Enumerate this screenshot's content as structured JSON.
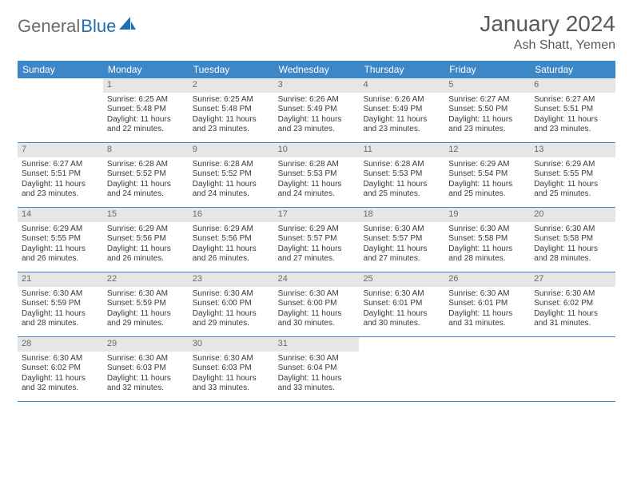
{
  "brand": {
    "part1": "General",
    "part2": "Blue"
  },
  "title": "January 2024",
  "location": "Ash Shatt, Yemen",
  "colors": {
    "header_bg": "#3d87c7",
    "header_text": "#ffffff",
    "daynum_bg": "#e6e6e6",
    "daynum_text": "#6a6a6a",
    "body_text": "#3a3a3a",
    "rule": "#3d87c7",
    "brand_gray": "#6b6b6b",
    "brand_blue": "#1f6fb2"
  },
  "day_names": [
    "Sunday",
    "Monday",
    "Tuesday",
    "Wednesday",
    "Thursday",
    "Friday",
    "Saturday"
  ],
  "weeks": [
    [
      {
        "blank": true
      },
      {
        "num": "1",
        "sunrise": "Sunrise: 6:25 AM",
        "sunset": "Sunset: 5:48 PM",
        "daylight": "Daylight: 11 hours and 22 minutes."
      },
      {
        "num": "2",
        "sunrise": "Sunrise: 6:25 AM",
        "sunset": "Sunset: 5:48 PM",
        "daylight": "Daylight: 11 hours and 23 minutes."
      },
      {
        "num": "3",
        "sunrise": "Sunrise: 6:26 AM",
        "sunset": "Sunset: 5:49 PM",
        "daylight": "Daylight: 11 hours and 23 minutes."
      },
      {
        "num": "4",
        "sunrise": "Sunrise: 6:26 AM",
        "sunset": "Sunset: 5:49 PM",
        "daylight": "Daylight: 11 hours and 23 minutes."
      },
      {
        "num": "5",
        "sunrise": "Sunrise: 6:27 AM",
        "sunset": "Sunset: 5:50 PM",
        "daylight": "Daylight: 11 hours and 23 minutes."
      },
      {
        "num": "6",
        "sunrise": "Sunrise: 6:27 AM",
        "sunset": "Sunset: 5:51 PM",
        "daylight": "Daylight: 11 hours and 23 minutes."
      }
    ],
    [
      {
        "num": "7",
        "sunrise": "Sunrise: 6:27 AM",
        "sunset": "Sunset: 5:51 PM",
        "daylight": "Daylight: 11 hours and 23 minutes."
      },
      {
        "num": "8",
        "sunrise": "Sunrise: 6:28 AM",
        "sunset": "Sunset: 5:52 PM",
        "daylight": "Daylight: 11 hours and 24 minutes."
      },
      {
        "num": "9",
        "sunrise": "Sunrise: 6:28 AM",
        "sunset": "Sunset: 5:52 PM",
        "daylight": "Daylight: 11 hours and 24 minutes."
      },
      {
        "num": "10",
        "sunrise": "Sunrise: 6:28 AM",
        "sunset": "Sunset: 5:53 PM",
        "daylight": "Daylight: 11 hours and 24 minutes."
      },
      {
        "num": "11",
        "sunrise": "Sunrise: 6:28 AM",
        "sunset": "Sunset: 5:53 PM",
        "daylight": "Daylight: 11 hours and 25 minutes."
      },
      {
        "num": "12",
        "sunrise": "Sunrise: 6:29 AM",
        "sunset": "Sunset: 5:54 PM",
        "daylight": "Daylight: 11 hours and 25 minutes."
      },
      {
        "num": "13",
        "sunrise": "Sunrise: 6:29 AM",
        "sunset": "Sunset: 5:55 PM",
        "daylight": "Daylight: 11 hours and 25 minutes."
      }
    ],
    [
      {
        "num": "14",
        "sunrise": "Sunrise: 6:29 AM",
        "sunset": "Sunset: 5:55 PM",
        "daylight": "Daylight: 11 hours and 26 minutes."
      },
      {
        "num": "15",
        "sunrise": "Sunrise: 6:29 AM",
        "sunset": "Sunset: 5:56 PM",
        "daylight": "Daylight: 11 hours and 26 minutes."
      },
      {
        "num": "16",
        "sunrise": "Sunrise: 6:29 AM",
        "sunset": "Sunset: 5:56 PM",
        "daylight": "Daylight: 11 hours and 26 minutes."
      },
      {
        "num": "17",
        "sunrise": "Sunrise: 6:29 AM",
        "sunset": "Sunset: 5:57 PM",
        "daylight": "Daylight: 11 hours and 27 minutes."
      },
      {
        "num": "18",
        "sunrise": "Sunrise: 6:30 AM",
        "sunset": "Sunset: 5:57 PM",
        "daylight": "Daylight: 11 hours and 27 minutes."
      },
      {
        "num": "19",
        "sunrise": "Sunrise: 6:30 AM",
        "sunset": "Sunset: 5:58 PM",
        "daylight": "Daylight: 11 hours and 28 minutes."
      },
      {
        "num": "20",
        "sunrise": "Sunrise: 6:30 AM",
        "sunset": "Sunset: 5:58 PM",
        "daylight": "Daylight: 11 hours and 28 minutes."
      }
    ],
    [
      {
        "num": "21",
        "sunrise": "Sunrise: 6:30 AM",
        "sunset": "Sunset: 5:59 PM",
        "daylight": "Daylight: 11 hours and 28 minutes."
      },
      {
        "num": "22",
        "sunrise": "Sunrise: 6:30 AM",
        "sunset": "Sunset: 5:59 PM",
        "daylight": "Daylight: 11 hours and 29 minutes."
      },
      {
        "num": "23",
        "sunrise": "Sunrise: 6:30 AM",
        "sunset": "Sunset: 6:00 PM",
        "daylight": "Daylight: 11 hours and 29 minutes."
      },
      {
        "num": "24",
        "sunrise": "Sunrise: 6:30 AM",
        "sunset": "Sunset: 6:00 PM",
        "daylight": "Daylight: 11 hours and 30 minutes."
      },
      {
        "num": "25",
        "sunrise": "Sunrise: 6:30 AM",
        "sunset": "Sunset: 6:01 PM",
        "daylight": "Daylight: 11 hours and 30 minutes."
      },
      {
        "num": "26",
        "sunrise": "Sunrise: 6:30 AM",
        "sunset": "Sunset: 6:01 PM",
        "daylight": "Daylight: 11 hours and 31 minutes."
      },
      {
        "num": "27",
        "sunrise": "Sunrise: 6:30 AM",
        "sunset": "Sunset: 6:02 PM",
        "daylight": "Daylight: 11 hours and 31 minutes."
      }
    ],
    [
      {
        "num": "28",
        "sunrise": "Sunrise: 6:30 AM",
        "sunset": "Sunset: 6:02 PM",
        "daylight": "Daylight: 11 hours and 32 minutes."
      },
      {
        "num": "29",
        "sunrise": "Sunrise: 6:30 AM",
        "sunset": "Sunset: 6:03 PM",
        "daylight": "Daylight: 11 hours and 32 minutes."
      },
      {
        "num": "30",
        "sunrise": "Sunrise: 6:30 AM",
        "sunset": "Sunset: 6:03 PM",
        "daylight": "Daylight: 11 hours and 33 minutes."
      },
      {
        "num": "31",
        "sunrise": "Sunrise: 6:30 AM",
        "sunset": "Sunset: 6:04 PM",
        "daylight": "Daylight: 11 hours and 33 minutes."
      },
      {
        "blank": true
      },
      {
        "blank": true
      },
      {
        "blank": true
      }
    ]
  ]
}
